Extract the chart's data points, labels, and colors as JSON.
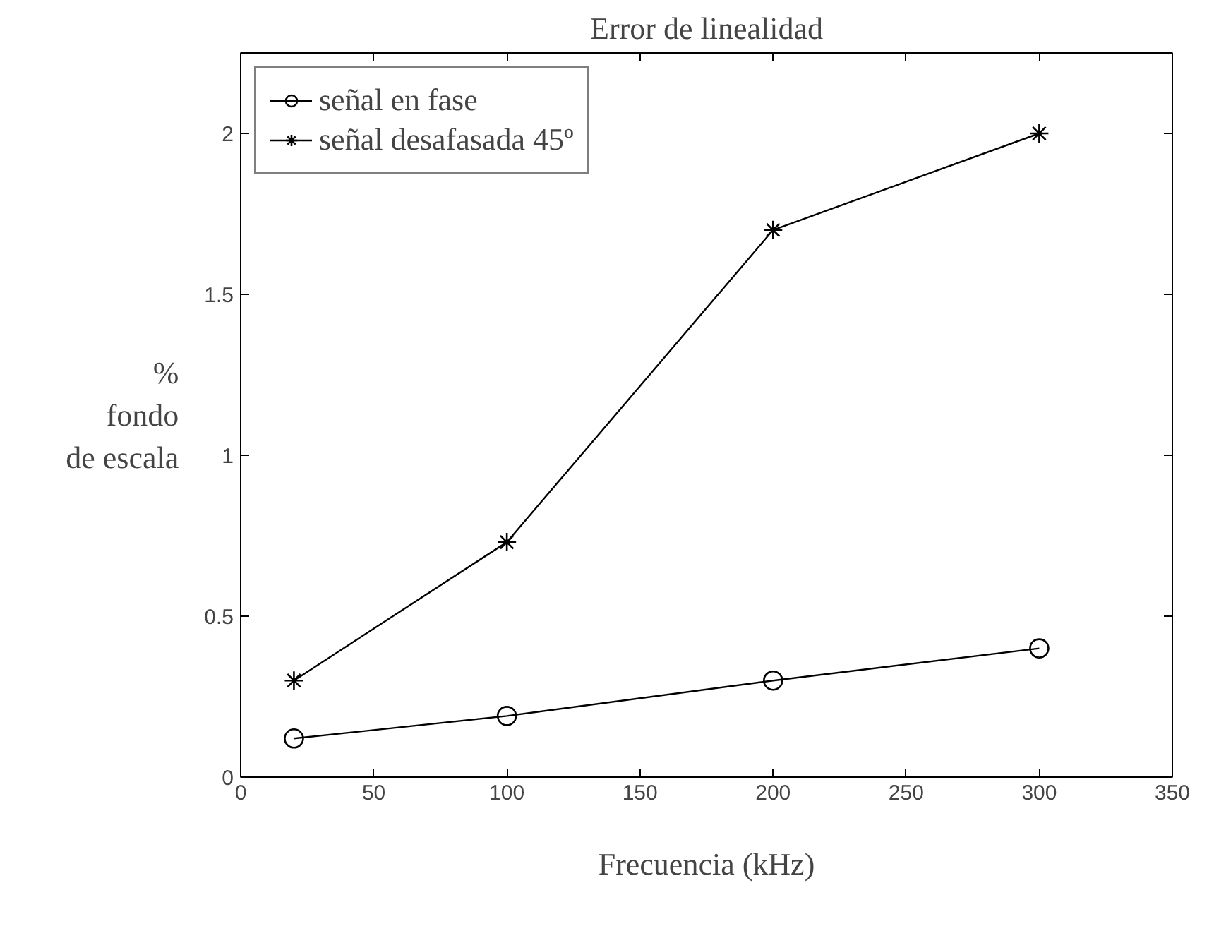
{
  "chart_data": {
    "type": "line",
    "title": "Error de linealidad",
    "xlabel": "Frecuencia (kHz)",
    "ylabel": "%\nfondo\nde escala",
    "x": [
      20,
      100,
      200,
      300
    ],
    "series": [
      {
        "name": "señal en fase",
        "color": "#000000",
        "marker": "circle",
        "values": [
          0.12,
          0.19,
          0.3,
          0.4
        ]
      },
      {
        "name": "señal desafasada 45º",
        "color": "#000000",
        "marker": "cross",
        "values": [
          0.3,
          0.73,
          1.7,
          2.0
        ]
      }
    ],
    "xlim": [
      0,
      350
    ],
    "xticks": [
      0,
      50,
      100,
      150,
      200,
      250,
      300,
      350
    ],
    "ylim": [
      0,
      2.25
    ],
    "yticks": [
      0,
      0.5,
      1,
      1.5,
      2
    ],
    "grid": false,
    "legend": "top left",
    "line_style": "solid"
  }
}
